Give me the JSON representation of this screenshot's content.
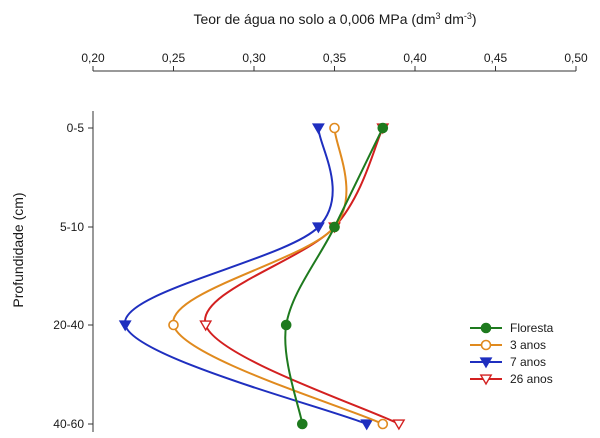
{
  "chart_data": {
    "type": "line",
    "title": "",
    "xlabel": "Teor de água no solo a 0,006 MPa (dm³ dm⁻³)",
    "xlabel_parts": {
      "main": "Teor de água no solo a 0,006 MPa (dm",
      "sup1": "3",
      "mid": " dm",
      "sup2": "-3",
      "end": ")"
    },
    "ylabel": "Profundidade (cm)",
    "x_axis_position": "top",
    "xlim": [
      0.2,
      0.5
    ],
    "x_ticks": [
      0.2,
      0.25,
      0.3,
      0.35,
      0.4,
      0.45,
      0.5
    ],
    "x_tick_labels": [
      "0,20",
      "0,25",
      "0,30",
      "0,35",
      "0,40",
      "0,45",
      "0,50"
    ],
    "categories": [
      "0-5",
      "5-10",
      "20-40",
      "40-60"
    ],
    "grid": false,
    "legend_position": "bottom-right",
    "series": [
      {
        "name": "Floresta",
        "values": [
          0.38,
          0.35,
          0.32,
          0.33
        ],
        "color": "#1e7a1e",
        "marker": "circle-filled"
      },
      {
        "name": "3 anos",
        "values": [
          0.35,
          0.35,
          0.25,
          0.38
        ],
        "color": "#e08a1e",
        "marker": "circle-open"
      },
      {
        "name": "7 anos",
        "values": [
          0.34,
          0.34,
          0.22,
          0.37
        ],
        "color": "#1f2fbf",
        "marker": "triangle-down-filled"
      },
      {
        "name": "26 anos",
        "values": [
          0.38,
          0.35,
          0.27,
          0.39
        ],
        "color": "#d32020",
        "marker": "triangle-down-open"
      }
    ]
  }
}
